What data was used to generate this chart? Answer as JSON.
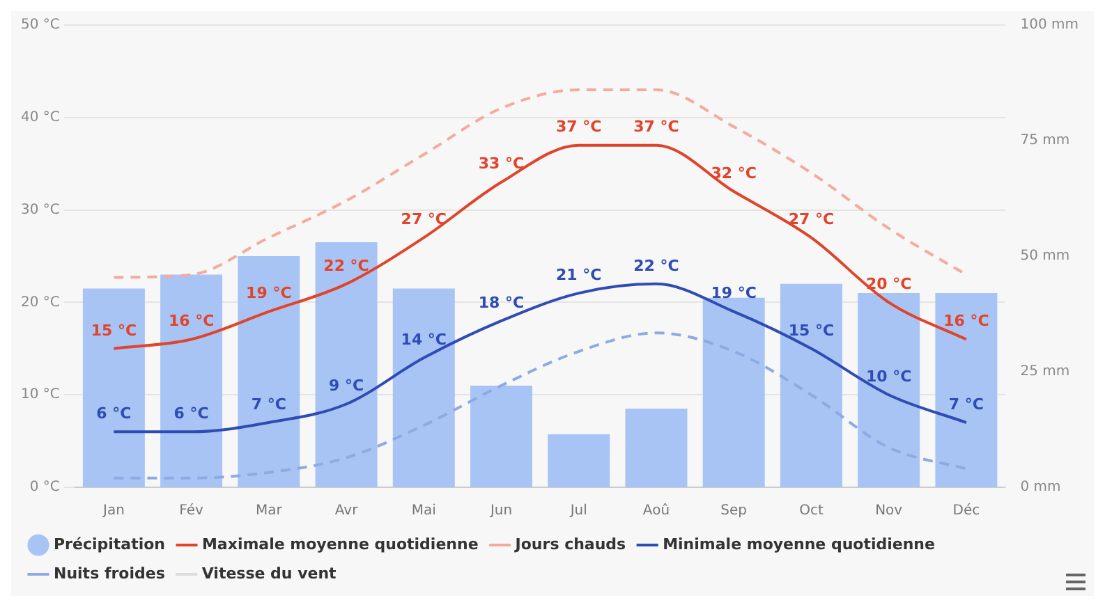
{
  "chart_data": {
    "type": "bar",
    "categories": [
      "Jan",
      "Fév",
      "Mar",
      "Avr",
      "Mai",
      "Jun",
      "Jul",
      "Aoû",
      "Sep",
      "Oct",
      "Nov",
      "Déc"
    ],
    "series": [
      {
        "name": "Précipitation",
        "axis": "y2",
        "color": "#a8c4f5",
        "values": [
          43,
          46,
          50,
          53,
          43,
          22,
          11.5,
          17,
          41,
          44,
          42,
          42
        ]
      },
      {
        "name": "Maximale moyenne quotidienne",
        "type": "line",
        "color": "#e0442a",
        "line_style": "solid",
        "values": [
          15,
          16,
          19,
          22,
          27,
          33,
          37,
          37,
          32,
          27,
          20,
          16
        ],
        "value_labels": [
          "15 °C",
          "16 °C",
          "19 °C",
          "22 °C",
          "27 °C",
          "33 °C",
          "37 °C",
          "37 °C",
          "32 °C",
          "27 °C",
          "20 °C",
          "16 °C"
        ]
      },
      {
        "name": "Jours chauds",
        "type": "line",
        "color": "#f4ab9e",
        "line_style": "dashed",
        "values": [
          22.7,
          23,
          27,
          31,
          36,
          41,
          43,
          43,
          39,
          34,
          28,
          23
        ]
      },
      {
        "name": "Minimale moyenne quotidienne",
        "type": "line",
        "color": "#2f4cb5",
        "line_style": "solid",
        "values": [
          6,
          6,
          7,
          9,
          14,
          18,
          21,
          22,
          19,
          15,
          10,
          7
        ],
        "value_labels": [
          "6 °C",
          "6 °C",
          "7 °C",
          "9 °C",
          "14 °C",
          "18 °C",
          "21 °C",
          "22 °C",
          "19 °C",
          "15 °C",
          "10 °C",
          "7 °C"
        ]
      },
      {
        "name": "Nuits froides",
        "type": "line",
        "color": "#8eaae2",
        "line_style": "dashed",
        "values": [
          1,
          1,
          1.6,
          3.2,
          6.7,
          11,
          14.7,
          16.7,
          14.7,
          10,
          4.3,
          2
        ]
      },
      {
        "name": "Vitesse du vent",
        "type": "line",
        "color": "#dcdcdc",
        "line_style": "solid",
        "values": [
          null,
          null,
          null,
          null,
          null,
          null,
          null,
          null,
          null,
          null,
          null,
          null
        ]
      }
    ],
    "ylim": [
      0,
      50
    ],
    "yticks": [
      {
        "value": 0,
        "label": "0 °C"
      },
      {
        "value": 10,
        "label": "10 °C"
      },
      {
        "value": 20,
        "label": "20 °C"
      },
      {
        "value": 30,
        "label": "30 °C"
      },
      {
        "value": 40,
        "label": "40 °C"
      },
      {
        "value": 50,
        "label": "50 °C"
      }
    ],
    "y2lim": [
      0,
      100
    ],
    "y2ticks": [
      {
        "value": 0,
        "label": "0 mm"
      },
      {
        "value": 25,
        "label": "25 mm"
      },
      {
        "value": 50,
        "label": "50 mm"
      },
      {
        "value": 75,
        "label": "75 mm"
      },
      {
        "value": 100,
        "label": "100 mm"
      }
    ],
    "grid": "y",
    "legend": "bottom"
  }
}
